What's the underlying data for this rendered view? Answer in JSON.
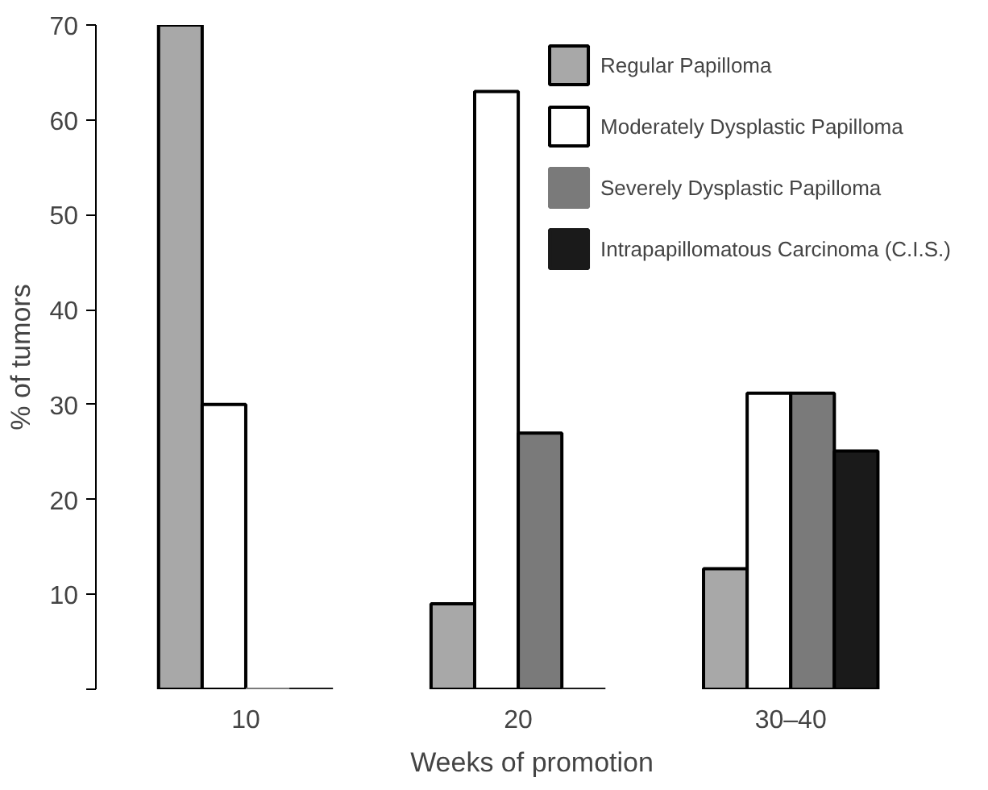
{
  "chart_data": {
    "type": "bar",
    "xlabel": "Weeks of promotion",
    "ylabel": "% of tumors",
    "categories": [
      "10",
      "20",
      "30–40"
    ],
    "series": [
      {
        "name": "Regular Papilloma",
        "color": "#a8a8a8",
        "values": [
          70,
          9,
          12.7
        ]
      },
      {
        "name": "Moderately Dysplastic Papilloma",
        "color": "#ffffff",
        "values": [
          30,
          63,
          31.2
        ]
      },
      {
        "name": "Severely Dysplastic Papilloma",
        "color": "#7a7a7a",
        "values": [
          0,
          27,
          31.2
        ]
      },
      {
        "name": "Intrapapillomatous Carcinoma (C.I.S.)",
        "color": "#1a1a1a",
        "values": [
          0,
          0,
          25.1
        ]
      }
    ],
    "ylim": [
      0,
      70
    ],
    "yticks": [
      {
        "value": 0,
        "label": null
      },
      10,
      20,
      30,
      40,
      50,
      60,
      70
    ],
    "grid": false,
    "legend": "top right"
  }
}
